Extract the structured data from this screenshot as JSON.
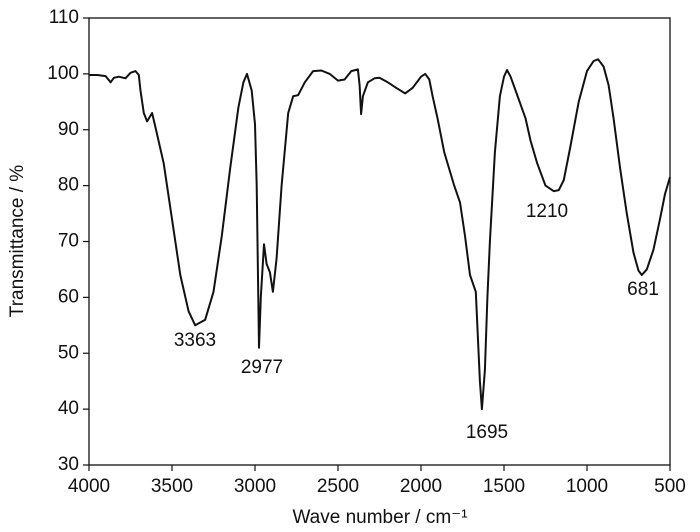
{
  "chart_data": {
    "type": "line",
    "xlabel": "Wave number / cm⁻¹",
    "ylabel": "Transmittance / %",
    "x": [
      4000,
      3950,
      3900,
      3870,
      3850,
      3820,
      3780,
      3750,
      3720,
      3700,
      3690,
      3670,
      3650,
      3620,
      3600,
      3550,
      3500,
      3450,
      3400,
      3360,
      3300,
      3250,
      3200,
      3150,
      3100,
      3070,
      3048,
      3020,
      3000,
      2990,
      2976,
      2965,
      2946,
      2930,
      2910,
      2892,
      2870,
      2840,
      2800,
      2770,
      2740,
      2700,
      2650,
      2600,
      2550,
      2500,
      2460,
      2420,
      2380,
      2370,
      2361,
      2350,
      2320,
      2280,
      2250,
      2200,
      2150,
      2096,
      2050,
      2000,
      1975,
      1950,
      1930,
      1900,
      1860,
      1800,
      1765,
      1735,
      1705,
      1670,
      1645,
      1633,
      1615,
      1600,
      1585,
      1555,
      1525,
      1500,
      1482,
      1460,
      1430,
      1400,
      1370,
      1340,
      1300,
      1250,
      1200,
      1170,
      1140,
      1100,
      1050,
      1000,
      960,
      933,
      900,
      870,
      840,
      800,
      760,
      720,
      690,
      670,
      640,
      600,
      560,
      530,
      500
    ],
    "values": [
      99.8,
      99.8,
      99.6,
      98.5,
      99.3,
      99.5,
      99.2,
      100.2,
      100.5,
      99.8,
      97,
      93,
      91.5,
      93,
      90.5,
      84,
      74,
      64,
      57.5,
      55,
      56,
      61,
      71,
      83,
      94,
      98.5,
      100,
      97,
      91,
      80,
      51,
      60,
      69.5,
      66,
      64.5,
      61,
      67,
      80,
      93,
      96,
      96.2,
      98.5,
      100.5,
      100.6,
      100,
      98.8,
      99,
      100.5,
      100.8,
      98,
      92.8,
      96,
      98.5,
      99.2,
      99.3,
      98.5,
      97.5,
      96.5,
      97.5,
      99.5,
      100,
      99,
      96,
      92,
      86,
      80,
      77,
      71,
      64,
      61,
      45,
      40,
      47,
      60,
      70,
      86,
      96,
      99.5,
      100.7,
      99.5,
      97,
      94.5,
      92,
      88,
      84,
      80,
      79,
      79.2,
      81,
      87,
      95,
      100.5,
      102.3,
      102.6,
      101.3,
      98,
      92,
      83,
      75,
      68,
      64.8,
      64,
      65,
      68.5,
      74,
      78.5,
      81.5
    ],
    "color": "#111111",
    "xlim": [
      4000,
      500
    ],
    "xticks": [
      4000,
      3500,
      3000,
      2500,
      2000,
      1500,
      1000,
      500
    ],
    "ylim": [
      30,
      110
    ],
    "yticks": [
      30,
      40,
      50,
      60,
      70,
      80,
      90,
      100,
      110
    ],
    "annotations": [
      "3363",
      "2977",
      "1695",
      "1210",
      "681"
    ],
    "grid": false
  }
}
